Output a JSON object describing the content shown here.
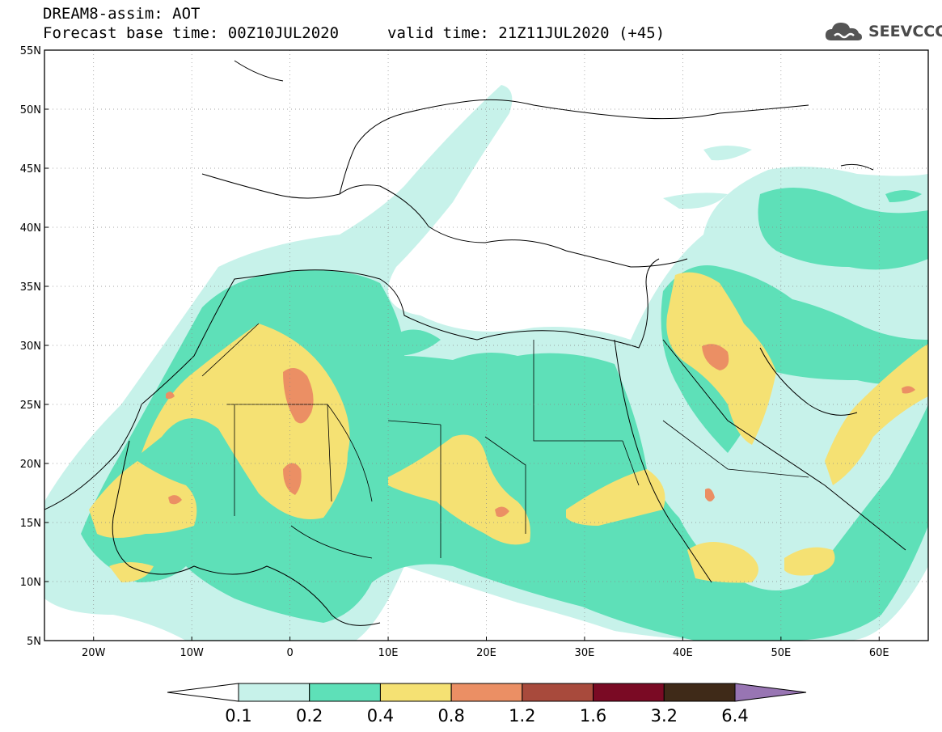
{
  "title": {
    "line1": "DREAM8-assim: AOT",
    "line2": "Forecast base time: 00Z10JUL2020",
    "valid": "valid time: 21Z11JUL2020 (+45)"
  },
  "logo": {
    "icon": "cloud-icon",
    "text": "SEEVCCC",
    "color": "#4a4a4a"
  },
  "map": {
    "lon_range": [
      -25,
      65
    ],
    "lat_range": [
      5,
      55
    ],
    "x_ticks": [
      "20W",
      "10W",
      "0",
      "10E",
      "20E",
      "30E",
      "40E",
      "50E",
      "60E"
    ],
    "y_ticks": [
      "55N",
      "50N",
      "45N",
      "40N",
      "35N",
      "30N",
      "25N",
      "20N",
      "15N",
      "10N",
      "5N"
    ],
    "grid": "dotted"
  },
  "legend": {
    "labels": [
      "0.1",
      "0.2",
      "0.4",
      "0.8",
      "1.2",
      "1.6",
      "3.2",
      "6.4"
    ],
    "colors": [
      "#ffffff",
      "#c7f2ea",
      "#5ee0b8",
      "#f5e173",
      "#eb8f64",
      "#a84a3c",
      "#7a0a24",
      "#3f2a18",
      "#9875b3"
    ]
  }
}
